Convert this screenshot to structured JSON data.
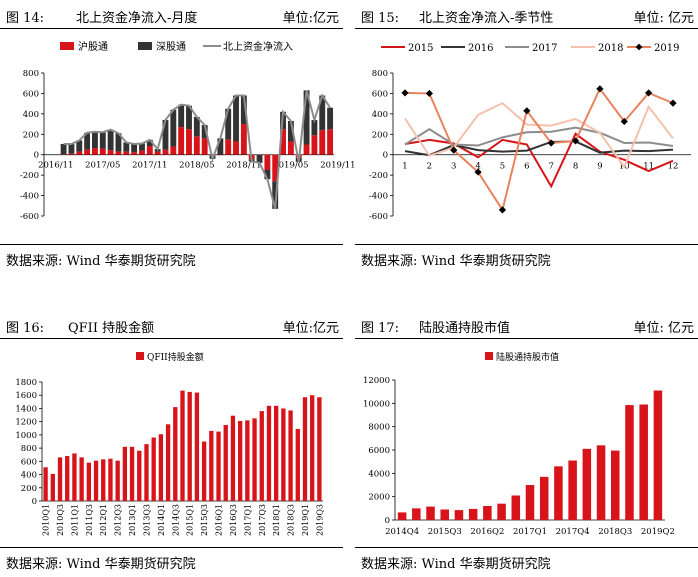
{
  "charts": [
    {
      "figure_no": "图 14:",
      "title": "北上资金净流入-月度",
      "unit": "单位:亿元",
      "source": "数据来源: Wind 华泰期货研究院"
    },
    {
      "figure_no": "图 15:",
      "title": "北上资金净流入-季节性",
      "unit": "单位: 亿元",
      "source": "数据来源: Wind 华泰期货研究院"
    },
    {
      "figure_no": "图 16:",
      "title": "QFII 持股金额",
      "unit": "单位:亿元",
      "source": "数据来源: Wind 华泰期货研究院"
    },
    {
      "figure_no": "图 17:",
      "title": "陆股通持股市值",
      "unit": "单位: 亿元",
      "source": "数据来源: Wind 华泰期货研究院"
    }
  ],
  "chart_data": [
    {
      "type": "bar",
      "stacked": true,
      "series": [
        {
          "name": "沪股通",
          "kind": "bar",
          "color": "#d7141a",
          "values": [
            5,
            10,
            30,
            50,
            65,
            60,
            45,
            30,
            30,
            25,
            40,
            85,
            30,
            50,
            80,
            270,
            250,
            180,
            160,
            -5,
            0,
            150,
            130,
            300,
            -45,
            0,
            -150,
            -260,
            250,
            130,
            -30,
            100,
            190,
            240,
            250
          ]
        },
        {
          "name": "深股通",
          "kind": "bar",
          "color": "#333333",
          "values": [
            100,
            95,
            110,
            165,
            160,
            160,
            200,
            180,
            90,
            80,
            70,
            60,
            25,
            290,
            360,
            220,
            230,
            190,
            130,
            -35,
            160,
            300,
            450,
            280,
            -20,
            -80,
            -90,
            -270,
            170,
            200,
            -40,
            530,
            150,
            340,
            210
          ]
        },
        {
          "name": "北上资金净流入",
          "kind": "line",
          "color": "#8c8c8c",
          "values": [
            105,
            105,
            140,
            215,
            225,
            220,
            245,
            210,
            120,
            105,
            110,
            145,
            55,
            340,
            440,
            490,
            480,
            370,
            290,
            -40,
            160,
            450,
            580,
            580,
            -65,
            -80,
            -240,
            -530,
            420,
            330,
            -70,
            630,
            340,
            580,
            460
          ]
        }
      ],
      "x_tick_labels": [
        "2016/11",
        "2017/05",
        "2017/11",
        "2018/05",
        "2018/11",
        "2019/05",
        "2019/11"
      ],
      "x_tick_months": [
        "2016-11",
        "2017-05",
        "2017-11",
        "2018-05",
        "2018-11",
        "2019-05",
        "2019-11"
      ],
      "start_month": "2016-12",
      "ylim": [
        -600,
        800
      ],
      "yticks": [
        -600,
        -400,
        -200,
        0,
        200,
        400,
        600,
        800
      ],
      "legend": "top"
    },
    {
      "type": "line",
      "categories": [
        "1",
        "2",
        "3",
        "4",
        "5",
        "6",
        "7",
        "8",
        "9",
        "10",
        "11",
        "12"
      ],
      "series": [
        {
          "name": "2015",
          "color": "#d7141a",
          "marker": null,
          "values": [
            105,
            145,
            110,
            -25,
            145,
            100,
            -310,
            205,
            30,
            -50,
            -160,
            -60
          ]
        },
        {
          "name": "2016",
          "color": "#333333",
          "marker": null,
          "values": [
            35,
            -5,
            95,
            45,
            30,
            40,
            125,
            130,
            20,
            40,
            35,
            50
          ]
        },
        {
          "name": "2017",
          "color": "#8c8c8c",
          "marker": null,
          "values": [
            100,
            250,
            100,
            90,
            170,
            220,
            225,
            265,
            215,
            115,
            120,
            85
          ]
        },
        {
          "name": "2018",
          "color": "#f4c1ad",
          "marker": null,
          "values": [
            355,
            -10,
            70,
            390,
            505,
            295,
            285,
            350,
            215,
            -120,
            470,
            160
          ]
        },
        {
          "name": "2019",
          "color": "#e8835e",
          "marker": "diamond",
          "marker_color": "#000000",
          "values": [
            605,
            600,
            45,
            -170,
            -540,
            430,
            115,
            135,
            645,
            325,
            605,
            505
          ]
        }
      ],
      "ylim": [
        -600,
        800
      ],
      "yticks": [
        -600,
        -400,
        -200,
        0,
        200,
        400,
        600,
        800
      ],
      "legend": "top"
    },
    {
      "type": "bar",
      "series": [
        {
          "name": "QFII持股金额",
          "color": "#d7141a",
          "values": [
            510,
            410,
            660,
            680,
            720,
            660,
            580,
            610,
            630,
            640,
            610,
            820,
            820,
            760,
            860,
            960,
            1010,
            1160,
            1420,
            1670,
            1650,
            1640,
            900,
            1060,
            1050,
            1150,
            1290,
            1210,
            1220,
            1250,
            1360,
            1440,
            1440,
            1400,
            1370,
            1090,
            1570,
            1600,
            1570
          ]
        }
      ],
      "x_tick_labels": [
        "2010Q1",
        "2010Q3",
        "2011Q1",
        "2011Q3",
        "2012Q1",
        "2012Q3",
        "2013Q1",
        "2013Q3",
        "2014Q1",
        "2014Q3",
        "2015Q1",
        "2015Q3",
        "2016Q1",
        "2016Q3",
        "2017Q1",
        "2017Q3",
        "2018Q1",
        "2018Q3",
        "2019Q1",
        "2019Q3"
      ],
      "ylim": [
        0,
        1800
      ],
      "yticks": [
        0,
        200,
        400,
        600,
        800,
        1000,
        1200,
        1400,
        1600,
        1800
      ],
      "legend": "top-left"
    },
    {
      "type": "bar",
      "series": [
        {
          "name": "陆股通持股市值",
          "color": "#d7141a",
          "values": [
            650,
            1000,
            1150,
            900,
            850,
            950,
            1200,
            1400,
            2100,
            3000,
            3700,
            4600,
            5100,
            6100,
            6400,
            5950,
            9850,
            9900,
            11100
          ]
        }
      ],
      "x_tick_labels": [
        "2014Q4",
        "2015Q3",
        "2016Q2",
        "2017Q1",
        "2017Q4",
        "2018Q3",
        "2019Q2"
      ],
      "x_tick_indices": [
        0,
        3,
        6,
        9,
        12,
        15,
        18
      ],
      "ylim": [
        0,
        12000
      ],
      "yticks": [
        0,
        2000,
        4000,
        6000,
        8000,
        10000,
        12000
      ],
      "legend": "top-left"
    }
  ]
}
